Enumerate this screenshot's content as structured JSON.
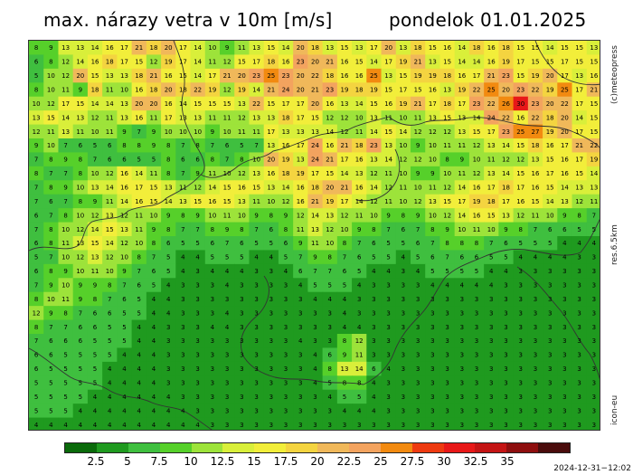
{
  "title": {
    "left": "max. nárazy vetra v 10m [m/s]",
    "right": "pondelok 01.01.2025"
  },
  "side_labels": {
    "brand": "(c)meteopress",
    "resolution": "res.6.5km",
    "model": "icon-eu"
  },
  "colorbar": {
    "colors": [
      "#0a6a0a",
      "#1f9a1f",
      "#3fbf3f",
      "#56d02a",
      "#9de33a",
      "#d9ef3a",
      "#f2ee3a",
      "#f4d440",
      "#f0b85a",
      "#f3a35f",
      "#f28a10",
      "#ee3a10",
      "#e81818",
      "#c41414",
      "#8e0e0e",
      "#4a0c0c"
    ],
    "ticks": [
      "2.5",
      "5",
      "7.5",
      "10",
      "12.5",
      "15",
      "17.5",
      "20",
      "22.5",
      "25",
      "27.5",
      "30",
      "32.5",
      "35"
    ]
  },
  "timestamp": "2024-12-31−12:02",
  "map_grid": {
    "rows": [
      "8 9 13 13 14 16 17 21 18 20 17 14 10 9 11 13 15 14 20 18 13 15 13 17 20 13 18 15 16 14 18 16 18 15 15 14 15 15 13",
      "6 8 12 14 16 18 17 15 12 19 17 14 11 12 15 17 18 16 23 20 21 16 15 14 17 19 21 13 15 14 14 16 19 17 15 15 17 15 15",
      "5 10 12 20 15 13 13 18 21 16 15 14 17 21 20 23 25 23 20 22 18 16 16 25 13 15 19 19 18 16 17 21 23 15 19 20 17 13 16",
      "8 10 11 9 18 11 10 16 18 20 18 22 19 12 19 14 21 24 20 21 23 19 18 19 15 17 15 16 13 19 22 25 20 23 22 19 25 17 21",
      "10 12 17 15 14 14 13 20 20 16 14 15 15 15 13 22 15 17 17 20 16 13 14 15 16 19 21 17 18 17 23 22 26 30 23 20 22 17 15",
      "13 15 14 13 12 11 13 16 11 17 13 13 11 11 12 13 13 18 17 15 12 12 10 13 11 10 11 13 15 13 14 24 22 16 22 18 20 14 15",
      "12 11 13 11 10 11 9 7 9 10 10 10 9 10 11 11 17 13 13 13 14 12 11 14 15 14 12 12 12 13 15 17 23 25 27 19 20 17 15",
      "9 10 7 6 5 6 8 8 9 8 7 8 7 6 5 7 13 16 17 24 16 21 18 23 13 10 9 10 11 11 12 13 14 15 18 16 17 21 22",
      "7 8 9 8 7 6 6 5 5 8 6 6 8 7 8 10 20 19 13 24 21 17 16 13 14 12 12 10 8 9 10 11 12 12 13 15 16 17 19",
      "8 7 7 8 10 12 16 14 11 8 7 9 11 10 12 13 16 18 19 17 15 14 13 12 11 10 9 9 10 11 12 13 14 15 16 17 16 15 14",
      "7 8 9 10 13 14 16 17 15 13 11 12 14 15 16 15 13 14 16 18 20 21 16 14 12 11 10 11 12 14 16 17 18 17 16 15 14 13 13",
      "7 6 7 8 9 11 14 16 15 14 13 15 16 15 13 11 10 12 16 21 19 17 14 12 11 10 12 13 15 17 19 18 17 16 15 14 13 12 11",
      "6 7 8 10 12 13 12 11 10 9 8 9 10 11 10 9 8 9 12 14 13 12 11 10 9 8 9 10 12 14 16 15 13 12 11 10 9 8 7",
      "7 8 10 12 14 15 13 11 9 8 7 7 8 9 8 7 6 8 11 13 12 10 9 8 7 6 7 8 9 10 11 10 9 8 7 6 6 5 5",
      "6 8 11 13 15 14 12 10 8 6 5 5 6 7 6 5 5 6 9 11 10 8 7 6 5 5 6 7 8 8 8 7 6 5 5 5 4 4 4",
      "5 7 10 12 13 12 10 8 7 5 4 4 5 5 5 4 4 5 7 9 8 7 6 5 5 4 5 6 7 6 6 5 5 4 4 4 4 3 3",
      "6 8 9 10 11 10 9 7 6 5 4 3 4 4 4 3 3 4 6 7 7 6 5 4 4 3 4 5 5 5 5 4 4 3 3 3 3 3 3",
      "7 9 10 9 9 8 7 6 5 4 3 3 3 4 3 3 3 3 4 5 5 5 4 3 3 3 3 4 4 4 4 4 3 3 3 3 3 3 3",
      "8 10 11 9 8 7 6 5 4 4 3 3 3 3 3 3 3 3 3 4 4 4 3 3 3 3 3 3 3 3 3 3 3 3 3 3 3 3 3",
      "12 9 8 7 6 6 5 5 4 4 3 3 3 4 3 3 3 3 3 3 3 4 3 3 3 3 3 3 3 3 3 3 3 3 3 3 3 3 3",
      "8 7 7 6 6 5 5 4 4 3 3 3 4 4 3 3 3 3 3 3 3 4 4 3 3 3 3 3 3 3 3 3 3 3 3 3 3 3 3",
      "7 6 6 6 5 5 5 4 4 3 3 3 3 3 3 3 3 3 4 3 3 8 12 3 3 3 3 3 3 3 3 3 3 3 3 3 3 3 3",
      "6 6 5 5 5 5 4 4 4 3 3 3 3 3 3 3 3 3 3 4 6 9 11 3 3 3 3 3 3 3 3 3 3 3 3 3 3 3 3",
      "6 5 5 5 5 4 4 4 4 3 3 3 3 3 3 3 3 3 3 4 8 13 14 6 4 3 3 3 3 3 3 3 3 3 3 3 3 3 3",
      "5 5 5 5 5 4 4 4 4 3 3 3 3 3 3 3 3 3 3 4 5 8 8 4 3 3 3 3 3 3 3 3 3 3 3 3 3 3 3",
      "5 5 5 5 4 4 4 4 4 4 3 3 3 3 3 3 3 3 3 3 4 5 5 4 3 3 3 3 3 3 3 3 3 3 3 3 3 3 3",
      "5 5 5 4 4 4 4 4 4 4 4 3 3 3 3 3 3 3 3 3 3 4 4 4 3 3 3 3 3 3 3 3 3 3 3 3 3 3 3",
      "4 4 4 4 4 4 4 4 4 4 4 4 3 3 3 3 3 3 3 3 3 3 3 3 3 3 3 3 3 3 3 3 3 3 3 3 3 3 3"
    ]
  }
}
